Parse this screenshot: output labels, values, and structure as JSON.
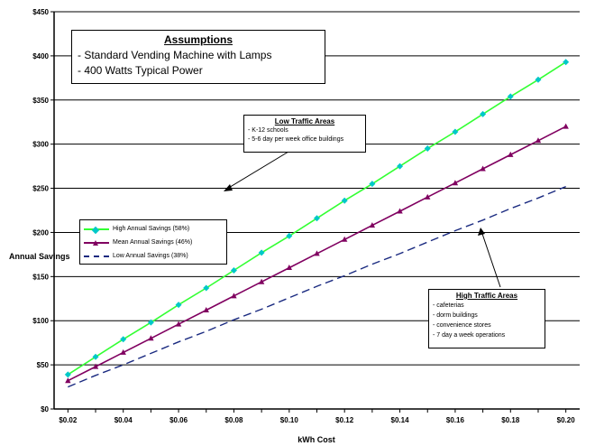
{
  "chart_data": {
    "type": "line",
    "title": "",
    "xlabel": "kWh Cost",
    "ylabel": "Annual Savings",
    "x": [
      0.02,
      0.03,
      0.04,
      0.05,
      0.06,
      0.07,
      0.08,
      0.09,
      0.1,
      0.11,
      0.12,
      0.13,
      0.14,
      0.15,
      0.16,
      0.17,
      0.18,
      0.19,
      0.2
    ],
    "x_ticks": [
      "$0.02",
      "$0.04",
      "$0.06",
      "$0.08",
      "$0.10",
      "$0.12",
      "$0.14",
      "$0.16",
      "$0.18",
      "$0.20"
    ],
    "x_tick_values": [
      0.02,
      0.04,
      0.06,
      0.08,
      0.1,
      0.12,
      0.14,
      0.16,
      0.18,
      0.2
    ],
    "xlim": [
      0.015,
      0.205
    ],
    "y_ticks": [
      "$0",
      "$50",
      "$100",
      "$150",
      "$200",
      "$250",
      "$300",
      "$350",
      "$400",
      "$450"
    ],
    "y_tick_values": [
      0,
      50,
      100,
      150,
      200,
      250,
      300,
      350,
      400,
      450
    ],
    "ylim": [
      0,
      450
    ],
    "grid": true,
    "series": [
      {
        "name": "High Annual Savings (58%)",
        "color": "#33ff33",
        "marker_color": "#00c8c8",
        "marker": "diamond",
        "style": "solid",
        "values": [
          39,
          59,
          79,
          98,
          118,
          137,
          157,
          177,
          196,
          216,
          236,
          255,
          275,
          295,
          314,
          334,
          354,
          373,
          393
        ]
      },
      {
        "name": "Mean Annual Savings (46%)",
        "color": "#800060",
        "marker_color": "#800060",
        "marker": "triangle",
        "style": "solid",
        "values": [
          32,
          48,
          64,
          80,
          96,
          112,
          128,
          144,
          160,
          176,
          192,
          208,
          224,
          240,
          256,
          272,
          288,
          304,
          320
        ]
      },
      {
        "name": "Low Annual Savings (38%)",
        "color": "#1a2a80",
        "marker_color": "#1a2a80",
        "marker": "none",
        "style": "dashed",
        "values": [
          25,
          38,
          50,
          63,
          76,
          88,
          101,
          113,
          126,
          139,
          151,
          164,
          176,
          189,
          202,
          214,
          227,
          239,
          252
        ]
      }
    ]
  },
  "annotations": {
    "assumptions": {
      "title": "Assumptions",
      "lines": [
        "- Standard Vending Machine with Lamps",
        "- 400 Watts Typical Power"
      ]
    },
    "low_traffic": {
      "title": "Low Traffic Areas",
      "lines": [
        "- K-12 schools",
        "- 5-6 day per week office buildings"
      ]
    },
    "high_traffic": {
      "title": "High Traffic Areas",
      "lines": [
        "- cafeterias",
        "- dorm buildings",
        "- convenience stores",
        "- 7 day a week operations"
      ]
    }
  },
  "colors": {
    "grid": "#000000",
    "axis": "#000000"
  }
}
